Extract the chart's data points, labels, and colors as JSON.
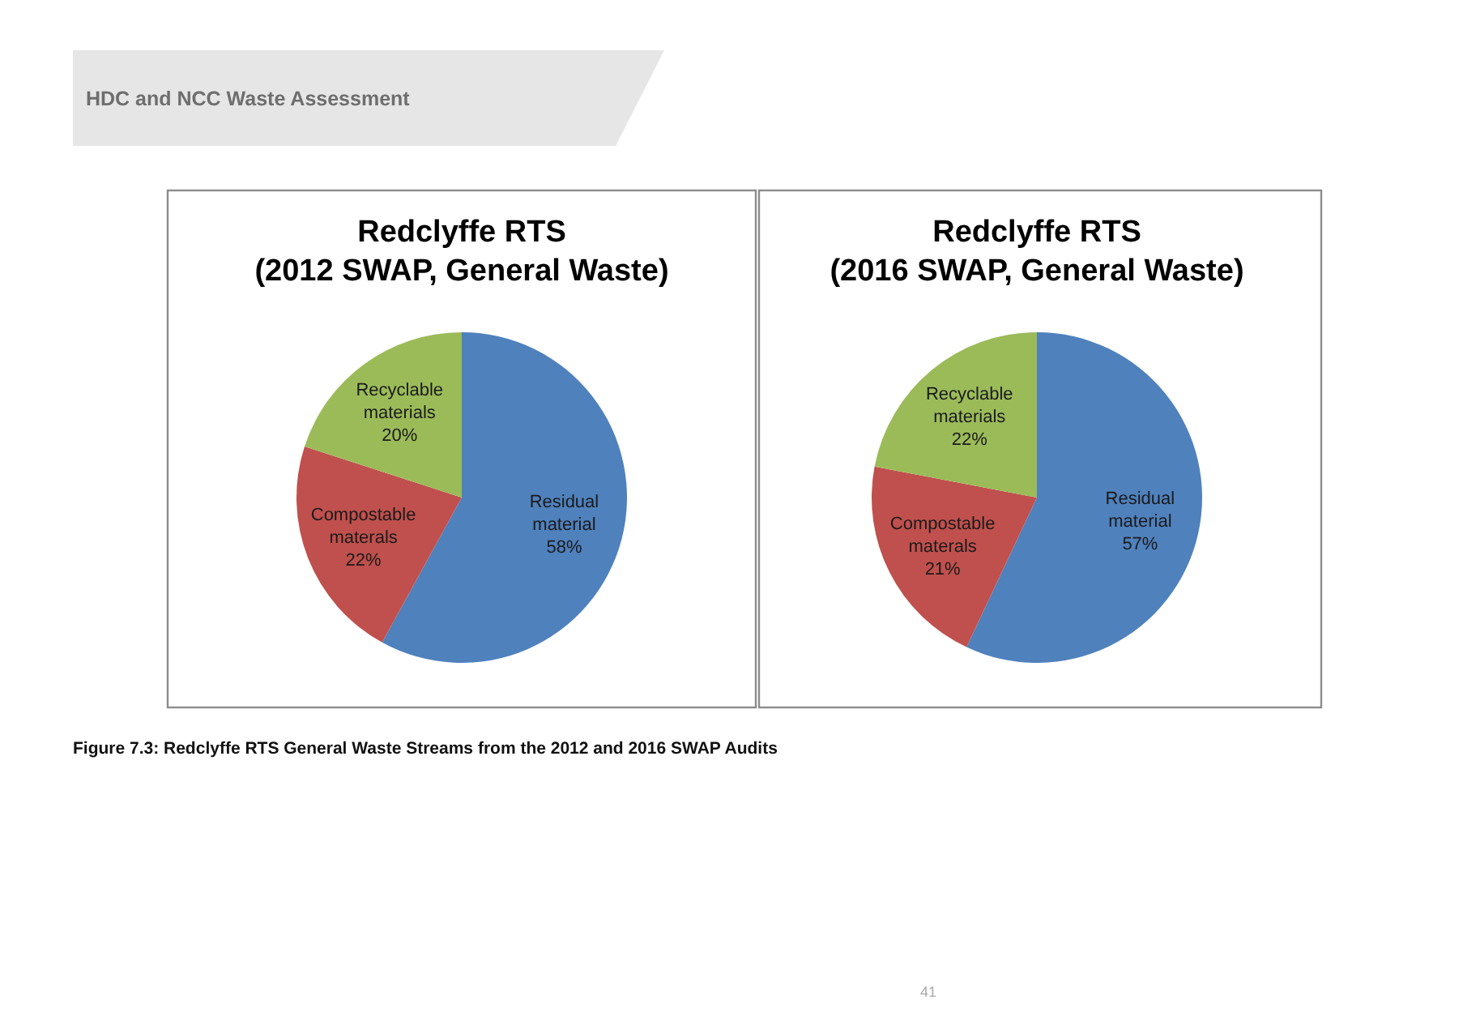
{
  "chart_data": [
    {
      "type": "pie",
      "title": "Redclyffe RTS\n(2012 SWAP, General Waste)",
      "categories": [
        "Residual material",
        "Compostable materals",
        "Recyclable materials"
      ],
      "values": [
        58,
        22,
        20
      ],
      "value_labels": [
        "58%",
        "22%",
        "20%"
      ],
      "colors": [
        "#4f81bd",
        "#c0504d",
        "#9bbb59"
      ],
      "annotations": [
        "HDC and NCC Waste Assessment",
        "Figure 7.3: Redclyffe RTS General Waste Streams from the 2012 and 2016 SWAP Audits",
        "41"
      ]
    },
    {
      "type": "pie",
      "title": "Redclyffe RTS\n(2016 SWAP, General Waste)",
      "categories": [
        "Residual material",
        "Compostable materals",
        "Recyclable materials"
      ],
      "values": [
        57,
        21,
        22
      ],
      "value_labels": [
        "57%",
        "21%",
        "22%"
      ],
      "colors": [
        "#4f81bd",
        "#c0504d",
        "#9bbb59"
      ]
    }
  ]
}
